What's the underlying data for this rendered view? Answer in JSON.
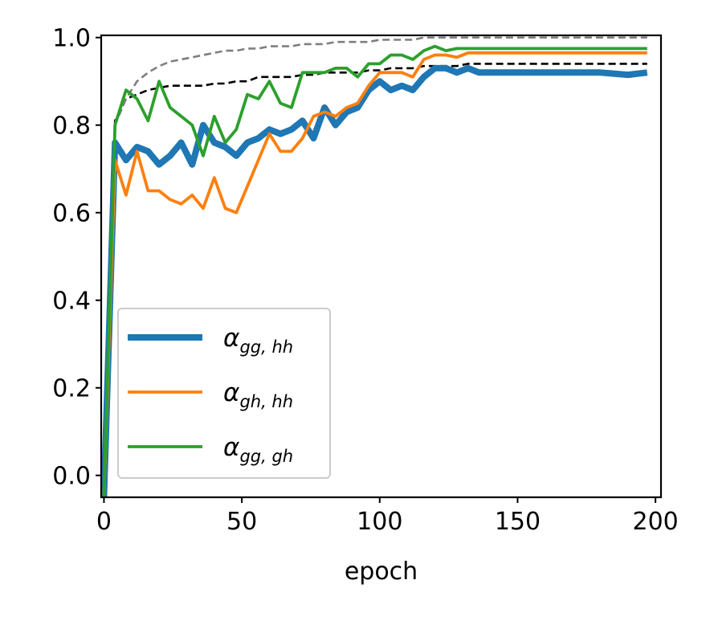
{
  "chart_data": {
    "type": "line",
    "title": "",
    "xlabel": "epoch",
    "ylabel": "",
    "xlim": [
      -1,
      202
    ],
    "ylim": [
      -0.05,
      1.005
    ],
    "xticks": [
      0,
      50,
      100,
      150,
      200
    ],
    "xtick_labels": [
      "0",
      "50",
      "100",
      "150",
      "200"
    ],
    "yticks": [
      0.0,
      0.2,
      0.4,
      0.6,
      0.8,
      1.0
    ],
    "ytick_labels": [
      "0.0",
      "0.2",
      "0.4",
      "0.6",
      "0.8",
      "1.0"
    ],
    "grid": false,
    "legend_position": "lower-left",
    "series": [
      {
        "name": "α_gg,hh",
        "legend_main": "α",
        "legend_sub": "gg, hh",
        "color": "#1f77b4",
        "style": "solid-thick",
        "x": [
          0,
          4,
          8,
          12,
          16,
          20,
          24,
          28,
          32,
          36,
          40,
          44,
          48,
          52,
          56,
          60,
          64,
          68,
          72,
          76,
          80,
          84,
          88,
          92,
          96,
          100,
          104,
          108,
          112,
          116,
          120,
          124,
          128,
          132,
          136,
          140,
          150,
          160,
          170,
          180,
          190,
          197
        ],
        "y": [
          -0.05,
          0.76,
          0.72,
          0.75,
          0.74,
          0.71,
          0.73,
          0.76,
          0.71,
          0.8,
          0.76,
          0.75,
          0.73,
          0.76,
          0.77,
          0.79,
          0.78,
          0.79,
          0.81,
          0.77,
          0.84,
          0.8,
          0.83,
          0.84,
          0.88,
          0.9,
          0.88,
          0.89,
          0.88,
          0.91,
          0.93,
          0.93,
          0.92,
          0.93,
          0.92,
          0.92,
          0.92,
          0.92,
          0.92,
          0.92,
          0.915,
          0.92
        ]
      },
      {
        "name": "α_gh,hh",
        "legend_main": "α",
        "legend_sub": "gh, hh",
        "color": "#ff7f0e",
        "style": "solid",
        "x": [
          0,
          4,
          8,
          12,
          16,
          20,
          24,
          28,
          32,
          36,
          40,
          44,
          48,
          52,
          56,
          60,
          64,
          68,
          72,
          76,
          80,
          84,
          88,
          92,
          96,
          100,
          104,
          108,
          112,
          116,
          120,
          124,
          128,
          132,
          136,
          140,
          150,
          160,
          170,
          180,
          190,
          197
        ],
        "y": [
          -0.05,
          0.72,
          0.64,
          0.74,
          0.65,
          0.65,
          0.63,
          0.62,
          0.64,
          0.61,
          0.68,
          0.61,
          0.6,
          0.66,
          0.72,
          0.78,
          0.74,
          0.74,
          0.77,
          0.82,
          0.83,
          0.82,
          0.84,
          0.85,
          0.89,
          0.92,
          0.92,
          0.92,
          0.91,
          0.95,
          0.96,
          0.96,
          0.955,
          0.965,
          0.965,
          0.965,
          0.965,
          0.965,
          0.965,
          0.965,
          0.965,
          0.965
        ]
      },
      {
        "name": "α_gg,gh",
        "legend_main": "α",
        "legend_sub": "gg, gh",
        "color": "#2ca02c",
        "style": "solid",
        "x": [
          0,
          4,
          8,
          12,
          16,
          20,
          24,
          28,
          32,
          36,
          40,
          44,
          48,
          52,
          56,
          60,
          64,
          68,
          72,
          76,
          80,
          84,
          88,
          92,
          96,
          100,
          104,
          108,
          112,
          116,
          120,
          124,
          128,
          132,
          136,
          140,
          150,
          160,
          170,
          180,
          190,
          197
        ],
        "y": [
          -0.05,
          0.8,
          0.88,
          0.86,
          0.81,
          0.9,
          0.84,
          0.82,
          0.8,
          0.73,
          0.82,
          0.76,
          0.79,
          0.87,
          0.86,
          0.9,
          0.85,
          0.84,
          0.92,
          0.92,
          0.92,
          0.93,
          0.93,
          0.91,
          0.94,
          0.94,
          0.96,
          0.96,
          0.95,
          0.97,
          0.98,
          0.97,
          0.975,
          0.975,
          0.975,
          0.975,
          0.975,
          0.975,
          0.975,
          0.975,
          0.975,
          0.975
        ]
      },
      {
        "name": "reference-black",
        "color": "#000000",
        "style": "dashed",
        "x": [
          0,
          4,
          8,
          12,
          16,
          20,
          24,
          28,
          32,
          36,
          40,
          44,
          48,
          52,
          56,
          60,
          64,
          68,
          72,
          76,
          80,
          84,
          88,
          92,
          96,
          100,
          104,
          108,
          112,
          116,
          120,
          124,
          128,
          132,
          136,
          140,
          150,
          160,
          170,
          180,
          190,
          197
        ],
        "y": [
          -0.05,
          0.81,
          0.86,
          0.87,
          0.88,
          0.885,
          0.89,
          0.89,
          0.89,
          0.89,
          0.895,
          0.895,
          0.9,
          0.9,
          0.91,
          0.91,
          0.91,
          0.91,
          0.915,
          0.915,
          0.92,
          0.92,
          0.92,
          0.92,
          0.925,
          0.925,
          0.93,
          0.93,
          0.93,
          0.935,
          0.935,
          0.935,
          0.935,
          0.94,
          0.94,
          0.94,
          0.94,
          0.94,
          0.94,
          0.94,
          0.94,
          0.94
        ]
      },
      {
        "name": "reference-gray",
        "color": "#7f7f7f",
        "style": "dashed",
        "x": [
          0,
          4,
          8,
          12,
          16,
          20,
          24,
          28,
          32,
          36,
          40,
          44,
          48,
          52,
          56,
          60,
          64,
          68,
          72,
          76,
          80,
          84,
          88,
          92,
          96,
          100,
          104,
          108,
          112,
          116,
          120,
          124,
          128,
          132,
          136,
          140,
          150,
          160,
          170,
          180,
          190,
          197
        ],
        "y": [
          -0.05,
          0.8,
          0.86,
          0.9,
          0.92,
          0.935,
          0.945,
          0.95,
          0.955,
          0.96,
          0.965,
          0.97,
          0.97,
          0.975,
          0.975,
          0.98,
          0.98,
          0.98,
          0.985,
          0.985,
          0.985,
          0.99,
          0.99,
          0.99,
          0.99,
          0.995,
          0.995,
          0.995,
          0.995,
          1.0,
          1.0,
          1.0,
          1.0,
          1.0,
          1.0,
          1.0,
          1.0,
          1.0,
          1.0,
          1.0,
          1.0,
          1.0
        ]
      }
    ]
  }
}
